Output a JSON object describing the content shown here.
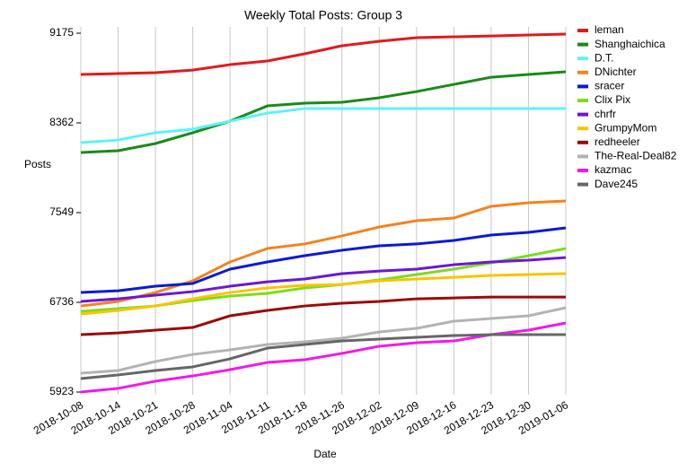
{
  "chart_data": {
    "type": "line",
    "title": "Weekly Total Posts: Group 3",
    "x_label": "Date",
    "y_label": "Posts",
    "categories": [
      "2018-10-08",
      "2018-10-14",
      "2018-10-21",
      "2018-10-28",
      "2018-11-04",
      "2018-11-11",
      "2018-11-18",
      "2018-11-26",
      "2018-12-02",
      "2018-12-09",
      "2018-12-16",
      "2018-12-23",
      "2018-12-30",
      "2019-01-06"
    ],
    "ylim": [
      5923,
      9175
    ],
    "yticks": [
      5923,
      6736,
      7549,
      8362,
      9175
    ],
    "grid": "x",
    "legend": "right",
    "series": [
      {
        "name": "leman",
        "color": "#e31a1c",
        "values": [
          8801,
          8809,
          8817,
          8841,
          8890,
          8923,
          8988,
          9061,
          9102,
          9134,
          9142,
          9150,
          9159,
          9167
        ]
      },
      {
        "name": "Shanghaichica",
        "color": "#1a8a1a",
        "values": [
          8094,
          8110,
          8175,
          8273,
          8378,
          8516,
          8541,
          8549,
          8590,
          8646,
          8711,
          8776,
          8801,
          8825
        ]
      },
      {
        "name": "D.T.",
        "color": "#5ef2f7",
        "values": [
          8183,
          8207,
          8273,
          8305,
          8378,
          8451,
          8492,
          8492,
          8492,
          8492,
          8492,
          8492,
          8492,
          8492
        ]
      },
      {
        "name": "DNichter",
        "color": "#f5821f",
        "values": [
          6703,
          6744,
          6825,
          6931,
          7102,
          7224,
          7265,
          7338,
          7419,
          7476,
          7500,
          7606,
          7638,
          7655
        ]
      },
      {
        "name": "sracer",
        "color": "#0b1ad6",
        "values": [
          6825,
          6841,
          6882,
          6907,
          7037,
          7102,
          7159,
          7208,
          7248,
          7265,
          7297,
          7346,
          7370,
          7411
        ]
      },
      {
        "name": "Clix Pix",
        "color": "#7ddc1f",
        "values": [
          6655,
          6679,
          6703,
          6752,
          6793,
          6817,
          6866,
          6898,
          6939,
          6988,
          7037,
          7094,
          7159,
          7224
        ]
      },
      {
        "name": "chrfr",
        "color": "#6a17d6",
        "values": [
          6744,
          6768,
          6801,
          6833,
          6882,
          6922,
          6947,
          6996,
          7020,
          7037,
          7077,
          7102,
          7118,
          7142
        ]
      },
      {
        "name": "GrumpyMom",
        "color": "#f7c600",
        "values": [
          6630,
          6663,
          6703,
          6768,
          6825,
          6866,
          6890,
          6898,
          6931,
          6947,
          6963,
          6980,
          6988,
          6996
        ]
      },
      {
        "name": "redheeler",
        "color": "#9b0a0a",
        "values": [
          6443,
          6459,
          6484,
          6508,
          6614,
          6663,
          6703,
          6728,
          6744,
          6768,
          6776,
          6784,
          6784,
          6784
        ]
      },
      {
        "name": "The-Real-Deal82",
        "color": "#b3b3b3",
        "values": [
          6094,
          6118,
          6200,
          6264,
          6305,
          6354,
          6378,
          6411,
          6468,
          6500,
          6565,
          6590,
          6614,
          6687
        ]
      },
      {
        "name": "kazmac",
        "color": "#f01ae6",
        "values": [
          5923,
          5956,
          6021,
          6069,
          6126,
          6191,
          6216,
          6273,
          6338,
          6370,
          6386,
          6443,
          6484,
          6549
        ]
      },
      {
        "name": "Dave245",
        "color": "#666666",
        "values": [
          6045,
          6078,
          6118,
          6151,
          6224,
          6321,
          6354,
          6386,
          6403,
          6419,
          6435,
          6443,
          6443,
          6443
        ]
      }
    ]
  }
}
